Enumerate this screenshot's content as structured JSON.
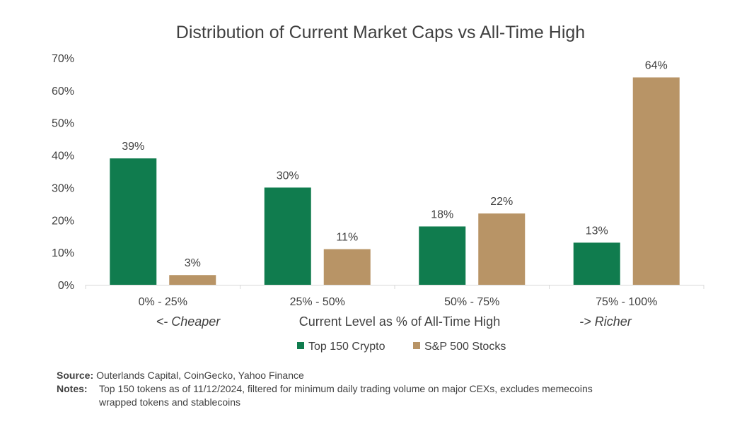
{
  "chart_data": {
    "type": "bar",
    "title": "Distribution of Current Market Caps vs All-Time High",
    "categories": [
      "0% - 25%",
      "25% - 50%",
      "50% - 75%",
      "75% - 100%"
    ],
    "series": [
      {
        "name": "Top 150 Crypto",
        "color": "#107c4e",
        "values": [
          39,
          30,
          18,
          13
        ],
        "labels": [
          "39%",
          "30%",
          "18%",
          "13%"
        ]
      },
      {
        "name": "S&P 500 Stocks",
        "color": "#b89466",
        "values": [
          3,
          11,
          22,
          64
        ],
        "labels": [
          "3%",
          "11%",
          "22%",
          "64%"
        ]
      }
    ],
    "ylim": [
      0,
      70
    ],
    "yticks": [
      "0%",
      "10%",
      "20%",
      "30%",
      "40%",
      "50%",
      "60%",
      "70%"
    ],
    "xlabel": "Current Level as % of All-Time High",
    "x_annotation_left": "<- Cheaper",
    "x_annotation_right": "-> Richer",
    "ylabel": "",
    "grid": false,
    "legend_position": "bottom-center"
  },
  "footer": {
    "source_label": "Source:",
    "source_text": "Outerlands Capital, CoinGecko, Yahoo Finance",
    "notes_label": "Notes:",
    "notes_line1": "Top 150 tokens as of 11/12/2024, filtered for minimum daily trading volume on major CEXs, excludes memecoins",
    "notes_line2": "wrapped tokens and stablecoins"
  }
}
